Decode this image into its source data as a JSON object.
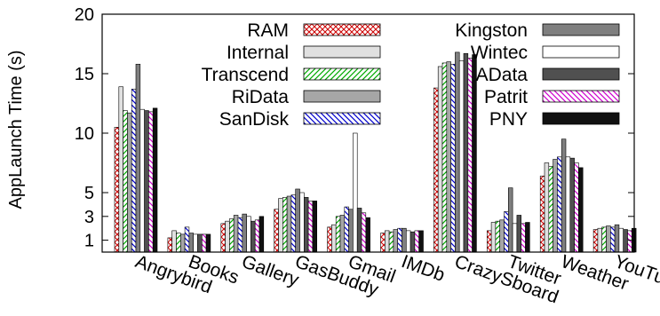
{
  "chart_data": {
    "type": "bar",
    "title": "",
    "xlabel": "",
    "ylabel": "AppLaunch Time (s)",
    "ylim": [
      0,
      20
    ],
    "yticks": [
      1,
      3,
      5,
      10,
      15,
      20
    ],
    "grid": false,
    "legend_placement": "top-right",
    "categories": [
      "Angrybird",
      "Books",
      "Gallery",
      "GasBuddy",
      "Gmail",
      "IMDb",
      "CrazySboard",
      "Twitter",
      "Weather",
      "YouTube"
    ],
    "series": [
      {
        "name": "RAM",
        "values": [
          10.5,
          1.2,
          2.4,
          3.6,
          2.1,
          1.6,
          13.8,
          1.8,
          6.4,
          1.9
        ],
        "color": "#cc0000",
        "pattern": "crosshatch"
      },
      {
        "name": "Internal",
        "values": [
          13.9,
          1.8,
          2.6,
          4.5,
          2.3,
          1.8,
          15.6,
          2.5,
          7.5,
          2.0
        ],
        "color": "#bfbfbf",
        "pattern": "solid-light"
      },
      {
        "name": "Transcend",
        "values": [
          11.9,
          1.6,
          2.8,
          4.6,
          3.0,
          1.7,
          15.9,
          2.6,
          7.2,
          2.1
        ],
        "color": "#00aa00",
        "pattern": "diagonal"
      },
      {
        "name": "RiData",
        "values": [
          11.7,
          1.5,
          3.1,
          4.7,
          3.1,
          1.9,
          16.0,
          2.7,
          7.8,
          2.2
        ],
        "color": "#999999",
        "pattern": "solid-mid"
      },
      {
        "name": "SanDisk",
        "values": [
          13.7,
          2.1,
          2.9,
          4.8,
          3.8,
          2.0,
          15.8,
          3.4,
          8.0,
          2.1
        ],
        "color": "#0000cc",
        "pattern": "diagonal-rev"
      },
      {
        "name": "Kingston",
        "values": [
          15.8,
          1.6,
          3.2,
          5.3,
          3.6,
          2.0,
          16.8,
          5.4,
          9.5,
          2.3
        ],
        "color": "#808080",
        "pattern": "solid-dark"
      },
      {
        "name": "Wintec",
        "values": [
          12.0,
          1.5,
          3.0,
          5.0,
          10.0,
          1.8,
          16.1,
          2.4,
          8.0,
          2.0
        ],
        "color": "#ffffff",
        "pattern": "solid-white"
      },
      {
        "name": "AData",
        "values": [
          11.9,
          1.5,
          2.6,
          4.6,
          3.7,
          1.7,
          16.7,
          3.1,
          7.9,
          1.9
        ],
        "color": "#505050",
        "pattern": "solid-darker"
      },
      {
        "name": "Patrit",
        "values": [
          11.8,
          1.5,
          2.7,
          4.3,
          3.3,
          1.8,
          16.3,
          2.4,
          7.5,
          1.8
        ],
        "color": "#cc00cc",
        "pattern": "diagonal"
      },
      {
        "name": "PNY",
        "values": [
          12.1,
          1.5,
          3.0,
          4.3,
          2.9,
          1.8,
          16.6,
          2.5,
          7.1,
          2.0
        ],
        "color": "#111111",
        "pattern": "solid-black"
      }
    ]
  }
}
